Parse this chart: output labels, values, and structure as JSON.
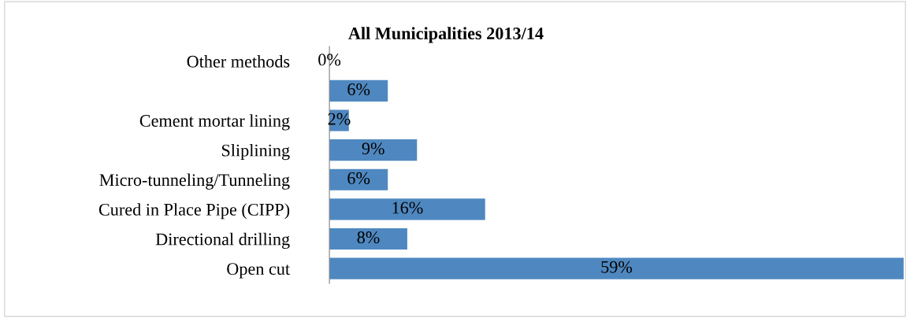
{
  "chart_data": {
    "type": "bar",
    "orientation": "horizontal",
    "title": "All Municipalities 2013/14",
    "categories": [
      "Other methods",
      null,
      "Cement mortar lining",
      "Sliplining",
      "Micro-tunneling/Tunneling",
      "Cured in Place Pipe (CIPP)",
      "Directional drilling",
      "Open cut"
    ],
    "values": [
      0,
      6,
      2,
      9,
      6,
      16,
      8,
      59
    ],
    "value_labels": [
      "0%",
      "6%",
      "2%",
      "9%",
      "6%",
      "16%",
      "8%",
      "59%"
    ],
    "color": "#4f88c0",
    "grid": false,
    "legend": false
  }
}
